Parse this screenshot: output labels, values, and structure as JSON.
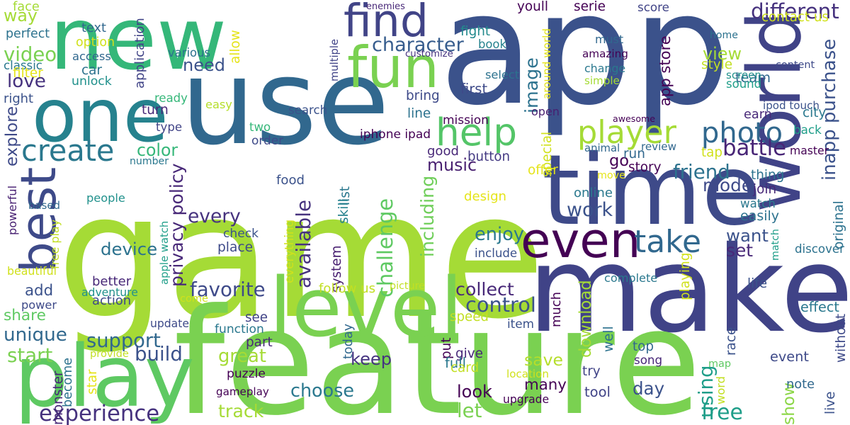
{
  "words": [
    {
      "text": "app",
      "color": "#3b528b"
    },
    {
      "text": "game",
      "color": "#a5db36"
    },
    {
      "text": "new",
      "color": "#35b779"
    },
    {
      "text": "make",
      "color": "#404387"
    },
    {
      "text": "feature",
      "color": "#7ad151"
    },
    {
      "text": "use",
      "color": "#31688e"
    },
    {
      "text": "one",
      "color": "#26828e"
    },
    {
      "text": "time",
      "color": "#3e4a89"
    },
    {
      "text": "level",
      "color": "#7ad151"
    },
    {
      "text": "play",
      "color": "#5ec962"
    },
    {
      "text": "world",
      "color": "#404387"
    },
    {
      "text": "find",
      "color": "#414487"
    },
    {
      "text": "fun",
      "color": "#7ad151"
    },
    {
      "text": "even",
      "color": "#440154"
    },
    {
      "text": "help",
      "color": "#54c568"
    },
    {
      "text": "best",
      "color": "#3e4a89"
    },
    {
      "text": "create",
      "color": "#2a788e"
    },
    {
      "text": "take",
      "color": "#31688e"
    },
    {
      "text": "photo",
      "color": "#31688e"
    },
    {
      "text": "player",
      "color": "#a5db36"
    },
    {
      "text": "character",
      "color": "#365c8d"
    },
    {
      "text": "different",
      "color": "#46327e"
    },
    {
      "text": "inapp purchase",
      "color": "#3b528b"
    },
    {
      "text": "app store",
      "color": "#440154"
    },
    {
      "text": "work",
      "color": "#3b528b"
    },
    {
      "text": "battle",
      "color": "#482576"
    },
    {
      "text": "team",
      "color": "#31688e"
    },
    {
      "text": "view",
      "color": "#a5db36"
    },
    {
      "text": "image",
      "color": "#2c728e"
    },
    {
      "text": "privacy policy",
      "color": "#482878"
    },
    {
      "text": "experience",
      "color": "#46327e"
    },
    {
      "text": "challenge",
      "color": "#5ec962"
    },
    {
      "text": "available",
      "color": "#46327e"
    },
    {
      "text": "video",
      "color": "#7ad151"
    },
    {
      "text": "way",
      "color": "#a5db36"
    },
    {
      "text": "need",
      "color": "#3b528b"
    },
    {
      "text": "love",
      "color": "#46327e"
    },
    {
      "text": "explore",
      "color": "#3e4a89"
    },
    {
      "text": "color",
      "color": "#35b779"
    },
    {
      "text": "music",
      "color": "#481f70"
    },
    {
      "text": "including",
      "color": "#6ece58"
    },
    {
      "text": "device",
      "color": "#2c728e"
    },
    {
      "text": "every",
      "color": "#46327e"
    },
    {
      "text": "favorite",
      "color": "#3e4a89"
    },
    {
      "text": "enjoy",
      "color": "#2a788e"
    },
    {
      "text": "control",
      "color": "#3b528b"
    },
    {
      "text": "collect",
      "color": "#482878"
    },
    {
      "text": "friend",
      "color": "#2c728e"
    },
    {
      "text": "mode",
      "color": "#3e4a89"
    },
    {
      "text": "want",
      "color": "#3b528b"
    },
    {
      "text": "set",
      "color": "#482878"
    },
    {
      "text": "go",
      "color": "#440154"
    },
    {
      "text": "see",
      "color": "#404387"
    },
    {
      "text": "add",
      "color": "#3b528b"
    },
    {
      "text": "share",
      "color": "#5ec962"
    },
    {
      "text": "unique",
      "color": "#31688e"
    },
    {
      "text": "support",
      "color": "#31688e"
    },
    {
      "text": "start",
      "color": "#7ad151"
    },
    {
      "text": "build",
      "color": "#3b528b"
    },
    {
      "text": "great",
      "color": "#a5db36"
    },
    {
      "text": "keep",
      "color": "#463480"
    },
    {
      "text": "choose",
      "color": "#2a788e"
    },
    {
      "text": "look",
      "color": "#440154"
    },
    {
      "text": "save",
      "color": "#b5de2b"
    },
    {
      "text": "many",
      "color": "#440154"
    },
    {
      "text": "day",
      "color": "#3b528b"
    },
    {
      "text": "map",
      "color": "#5ec962"
    },
    {
      "text": "show",
      "color": "#8bd646"
    },
    {
      "text": "free",
      "color": "#1f9e89"
    },
    {
      "text": "track",
      "color": "#a5db36"
    },
    {
      "text": "let",
      "color": "#7ad151"
    },
    {
      "text": "using",
      "color": "#1f9e89"
    },
    {
      "text": "download",
      "color": "#a5db36"
    },
    {
      "text": "face",
      "color": "#a5db36"
    },
    {
      "text": "perfect",
      "color": "#2c728e"
    },
    {
      "text": "text",
      "color": "#31688e"
    },
    {
      "text": "option",
      "color": "#d0e11c"
    },
    {
      "text": "classic",
      "color": "#2a788e"
    },
    {
      "text": "access",
      "color": "#31688e"
    },
    {
      "text": "filter",
      "color": "#e5e419"
    },
    {
      "text": "unlock",
      "color": "#21918c"
    },
    {
      "text": "car",
      "color": "#2c728e"
    },
    {
      "text": "application",
      "color": "#414487"
    },
    {
      "text": "various",
      "color": "#2c728e"
    },
    {
      "text": "allow",
      "color": "#e5e419"
    },
    {
      "text": "right",
      "color": "#3b528b"
    },
    {
      "text": "ready",
      "color": "#35b779"
    },
    {
      "text": "turn",
      "color": "#482878"
    },
    {
      "text": "type",
      "color": "#414487"
    },
    {
      "text": "easy",
      "color": "#b5de2b"
    },
    {
      "text": "two",
      "color": "#35b779"
    },
    {
      "text": "order",
      "color": "#3e4a89"
    },
    {
      "text": "search",
      "color": "#3b528b"
    },
    {
      "text": "number",
      "color": "#2a788e"
    },
    {
      "text": "enemies",
      "color": "#482878"
    },
    {
      "text": "youll",
      "color": "#440154"
    },
    {
      "text": "serie",
      "color": "#440154"
    },
    {
      "text": "score",
      "color": "#414487"
    },
    {
      "text": "contact us",
      "color": "#d0e11c"
    },
    {
      "text": "fight",
      "color": "#238a8d"
    },
    {
      "text": "book",
      "color": "#26828e"
    },
    {
      "text": "multiple",
      "color": "#404387"
    },
    {
      "text": "customize",
      "color": "#463480"
    },
    {
      "text": "around world",
      "color": "#e5e419"
    },
    {
      "text": "must",
      "color": "#31688e"
    },
    {
      "text": "amazing",
      "color": "#440154"
    },
    {
      "text": "home",
      "color": "#2c728e"
    },
    {
      "text": "style",
      "color": "#c2df23"
    },
    {
      "text": "content",
      "color": "#3e4a89"
    },
    {
      "text": "screen",
      "color": "#21918c"
    },
    {
      "text": "sound",
      "color": "#1f9e89"
    },
    {
      "text": "change",
      "color": "#2a788e"
    },
    {
      "text": "select",
      "color": "#2c728e"
    },
    {
      "text": "first",
      "color": "#3e4a89"
    },
    {
      "text": "simple",
      "color": "#a5db36"
    },
    {
      "text": "bring",
      "color": "#3e4a89"
    },
    {
      "text": "line",
      "color": "#2c728e"
    },
    {
      "text": "mission",
      "color": "#440154"
    },
    {
      "text": "open",
      "color": "#481f70"
    },
    {
      "text": "ipod touch",
      "color": "#3b528b"
    },
    {
      "text": "earn",
      "color": "#482878"
    },
    {
      "text": "city",
      "color": "#2a788e"
    },
    {
      "text": "back",
      "color": "#1f9e89"
    },
    {
      "text": "awesome",
      "color": "#440154"
    },
    {
      "text": "iphone ipad",
      "color": "#440154"
    },
    {
      "text": "special",
      "color": "#d0e11c"
    },
    {
      "text": "animal",
      "color": "#31688e"
    },
    {
      "text": "review",
      "color": "#31688e"
    },
    {
      "text": "run",
      "color": "#31688e"
    },
    {
      "text": "master",
      "color": "#440154"
    },
    {
      "text": "tap",
      "color": "#d0e11c"
    },
    {
      "text": "good",
      "color": "#482878"
    },
    {
      "text": "button",
      "color": "#443a83"
    },
    {
      "text": "list",
      "color": "#2a788e"
    },
    {
      "text": "offer",
      "color": "#e5e419"
    },
    {
      "text": "move",
      "color": "#e5e419"
    },
    {
      "text": "story",
      "color": "#440154"
    },
    {
      "text": "thing",
      "color": "#2c728e"
    },
    {
      "text": "food",
      "color": "#3b528b"
    },
    {
      "text": "people",
      "color": "#21918c"
    },
    {
      "text": "based",
      "color": "#31688e"
    },
    {
      "text": "free play",
      "color": "#c2df23"
    },
    {
      "text": "powerful",
      "color": "#482173"
    },
    {
      "text": "skill",
      "color": "#26828e"
    },
    {
      "text": "design",
      "color": "#e5e419"
    },
    {
      "text": "online",
      "color": "#2a788e"
    },
    {
      "text": "join",
      "color": "#482878"
    },
    {
      "text": "watch",
      "color": "#2a788e"
    },
    {
      "text": "easily",
      "color": "#2c728e"
    },
    {
      "text": "original",
      "color": "#2c728e"
    },
    {
      "text": "check",
      "color": "#3b528b"
    },
    {
      "text": "place",
      "color": "#3e4a89"
    },
    {
      "text": "everything",
      "color": "#d0e11c"
    },
    {
      "text": "apple watch",
      "color": "#1f9e89"
    },
    {
      "text": "system",
      "color": "#481f70"
    },
    {
      "text": "include",
      "color": "#3b528b"
    },
    {
      "text": "match",
      "color": "#1f9e89"
    },
    {
      "text": "discover",
      "color": "#2c728e"
    },
    {
      "text": "beautiful",
      "color": "#d0e11c"
    },
    {
      "text": "complete",
      "color": "#2a788e"
    },
    {
      "text": "playing",
      "color": "#d0e11c"
    },
    {
      "text": "better",
      "color": "#482878"
    },
    {
      "text": "adventure",
      "color": "#21918c"
    },
    {
      "text": "action",
      "color": "#3e4a89"
    },
    {
      "text": "power",
      "color": "#3e4a89"
    },
    {
      "text": "come",
      "color": "#d0e11c"
    },
    {
      "text": "follow us",
      "color": "#c2df23"
    },
    {
      "text": "picture",
      "color": "#c2df23"
    },
    {
      "text": "life",
      "color": "#3b528b"
    },
    {
      "text": "much",
      "color": "#440154"
    },
    {
      "text": "speed",
      "color": "#c2df23"
    },
    {
      "text": "effect",
      "color": "#2a788e"
    },
    {
      "text": "update",
      "color": "#3e4a89"
    },
    {
      "text": "function",
      "color": "#2a788e"
    },
    {
      "text": "today",
      "color": "#31688e"
    },
    {
      "text": "item",
      "color": "#3b528b"
    },
    {
      "text": "well",
      "color": "#2c728e"
    },
    {
      "text": "race",
      "color": "#3b528b"
    },
    {
      "text": "without",
      "color": "#3e4a89"
    },
    {
      "text": "part",
      "color": "#482878"
    },
    {
      "text": "put",
      "color": "#440154"
    },
    {
      "text": "give",
      "color": "#482878"
    },
    {
      "text": "full",
      "color": "#2a788e"
    },
    {
      "text": "card",
      "color": "#c2df23"
    },
    {
      "text": "top",
      "color": "#31688e"
    },
    {
      "text": "song",
      "color": "#482878"
    },
    {
      "text": "event",
      "color": "#3e4a89"
    },
    {
      "text": "provide",
      "color": "#c2df23"
    },
    {
      "text": "become",
      "color": "#2c728e"
    },
    {
      "text": "star",
      "color": "#e5e419"
    },
    {
      "text": "puzzle",
      "color": "#440154"
    },
    {
      "text": "monster",
      "color": "#482878"
    },
    {
      "text": "gameplay",
      "color": "#440154"
    },
    {
      "text": "location",
      "color": "#d0e11c"
    },
    {
      "text": "try",
      "color": "#404387"
    },
    {
      "text": "tool",
      "color": "#404387"
    },
    {
      "text": "upgrade",
      "color": "#440154"
    },
    {
      "text": "note",
      "color": "#31688e"
    },
    {
      "text": "word",
      "color": "#c2df23"
    },
    {
      "text": "live",
      "color": "#3b528b"
    }
  ]
}
